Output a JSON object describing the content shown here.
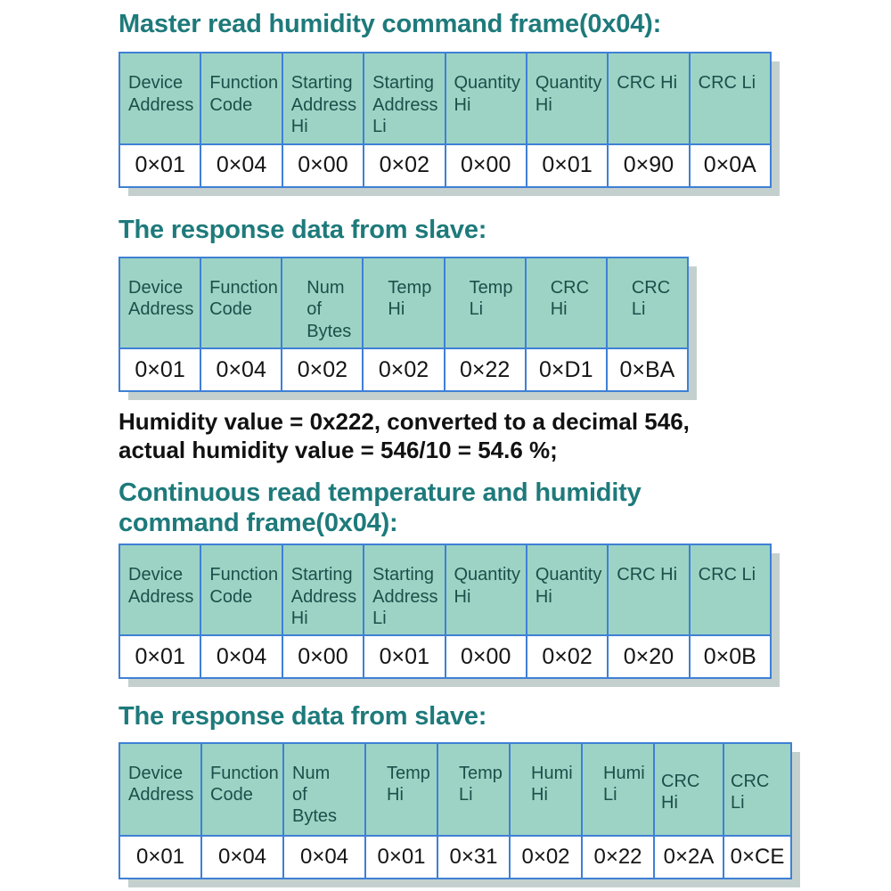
{
  "colors": {
    "page_bg": "#ffffff",
    "heading_text": "#1e7a7b",
    "table_header_bg": "#9dd3c5",
    "table_border": "#3f80d5",
    "header_cell_text": "#1c4f4a",
    "value_text": "#151515",
    "note_text": "#111111",
    "table_shadow": "#94aaa4"
  },
  "headings": {
    "h1": "Master read humidity command frame(0x04):",
    "h2": "The response data from slave:",
    "h3": "Continuous read temperature and humidity command frame(0x04):",
    "h4": "The response data from slave:"
  },
  "note": {
    "text": "Humidity value = 0x222, converted to a decimal 546,\nactual humidity value = 546/10 = 54.6 %;"
  },
  "tables": [
    {
      "name": "master-read-humidity-command-frame",
      "headers": [
        "Device\nAddress",
        "Function\nCode",
        "Starting\nAddress\nHi",
        "Starting\nAddress\nLi",
        "Quantity\nHi",
        "Quantity\nHi",
        "CRC Hi",
        "CRC Li"
      ],
      "values": [
        "0×01",
        "0×04",
        "0×00",
        "0×02",
        "0×00",
        "0×01",
        "0×90",
        "0×0A"
      ]
    },
    {
      "name": "humidity-response-frame",
      "headers": [
        "Device\nAddress",
        "Function\nCode",
        "Num\nof\nBytes",
        "Temp\nHi",
        "Temp\nLi",
        "CRC\nHi",
        "CRC\nLi"
      ],
      "values": [
        "0×01",
        "0×04",
        "0×02",
        "0×02",
        "0×22",
        "0×D1",
        "0×BA"
      ]
    },
    {
      "name": "continuous-read-temp-humidity-command-frame",
      "headers": [
        "Device\nAddress",
        "Function\nCode",
        "Starting\nAddress\nHi",
        "Starting\nAddress\nLi",
        "Quantity\nHi",
        "Quantity\nHi",
        "CRC Hi",
        "CRC Li"
      ],
      "values": [
        "0×01",
        "0×04",
        "0×00",
        "0×01",
        "0×00",
        "0×02",
        "0×20",
        "0×0B"
      ]
    },
    {
      "name": "temp-humidity-response-frame",
      "headers": [
        "Device\nAddress",
        "Function\nCode",
        "Num\nof\nBytes",
        "Temp\nHi",
        "Temp\nLi",
        "Humi\nHi",
        "Humi\nLi",
        "CRC Hi",
        "CRC Li"
      ],
      "values": [
        "0×01",
        "0×04",
        "0×04",
        "0×01",
        "0×31",
        "0×02",
        "0×22",
        "0×2A",
        "0×CE"
      ]
    }
  ]
}
